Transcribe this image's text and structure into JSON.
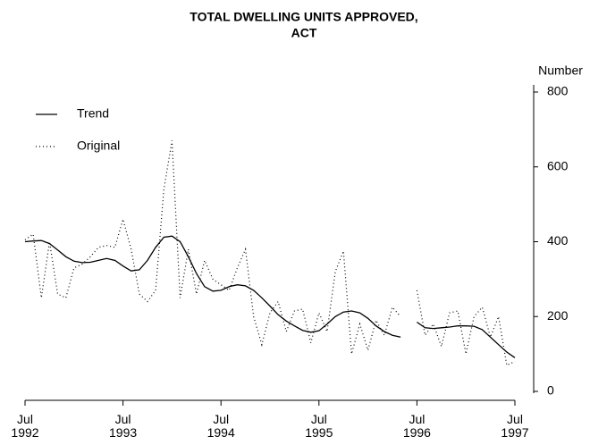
{
  "chart_data": {
    "type": "line",
    "title": "TOTAL DWELLING UNITS APPROVED,",
    "subtitle": "ACT",
    "y_axis_label": "Number",
    "x": [
      "1992-07",
      "1992-08",
      "1992-09",
      "1992-10",
      "1992-11",
      "1992-12",
      "1993-01",
      "1993-02",
      "1993-03",
      "1993-04",
      "1993-05",
      "1993-06",
      "1993-07",
      "1993-08",
      "1993-09",
      "1993-10",
      "1993-11",
      "1993-12",
      "1994-01",
      "1994-02",
      "1994-03",
      "1994-04",
      "1994-05",
      "1994-06",
      "1994-07",
      "1994-08",
      "1994-09",
      "1994-10",
      "1994-11",
      "1994-12",
      "1995-01",
      "1995-02",
      "1995-03",
      "1995-04",
      "1995-05",
      "1995-06",
      "1995-07",
      "1995-08",
      "1995-09",
      "1995-10",
      "1995-11",
      "1995-12",
      "1996-01",
      "1996-02",
      "1996-03",
      "1996-04",
      "1996-05",
      "1996-06",
      "1996-07",
      "1996-08",
      "1996-09",
      "1996-10",
      "1996-11",
      "1996-12",
      "1997-01",
      "1997-02",
      "1997-03",
      "1997-04",
      "1997-05",
      "1997-06",
      "1997-07"
    ],
    "series": [
      {
        "name": "Trend",
        "color": "#000000",
        "style": "solid",
        "values": [
          400,
          402,
          403,
          395,
          378,
          360,
          348,
          344,
          345,
          350,
          355,
          350,
          335,
          322,
          325,
          350,
          385,
          412,
          415,
          400,
          360,
          315,
          280,
          268,
          270,
          280,
          285,
          282,
          270,
          250,
          228,
          205,
          188,
          175,
          163,
          158,
          162,
          180,
          200,
          212,
          215,
          210,
          195,
          175,
          160,
          150,
          145,
          null,
          185,
          170,
          168,
          170,
          172,
          175,
          175,
          174,
          165,
          145,
          125,
          105,
          90
        ]
      },
      {
        "name": "Original",
        "color": "#000000",
        "style": "dotted",
        "values": [
          405,
          420,
          250,
          400,
          260,
          250,
          330,
          340,
          360,
          385,
          390,
          385,
          460,
          380,
          260,
          240,
          270,
          540,
          670,
          250,
          380,
          260,
          350,
          300,
          285,
          270,
          330,
          380,
          200,
          125,
          210,
          240,
          160,
          215,
          220,
          130,
          210,
          160,
          320,
          375,
          100,
          180,
          110,
          190,
          150,
          225,
          200,
          null,
          270,
          150,
          180,
          120,
          210,
          215,
          100,
          200,
          225,
          145,
          200,
          70,
          80
        ]
      }
    ],
    "ylim": [
      0,
      800
    ],
    "yticks": [
      0,
      200,
      400,
      600,
      800
    ],
    "xticks": [
      {
        "value": "1992-07",
        "label": "Jul 1992"
      },
      {
        "value": "1993-07",
        "label": "Jul 1993"
      },
      {
        "value": "1994-07",
        "label": "Jul 1994"
      },
      {
        "value": "1995-07",
        "label": "Jul 1995"
      },
      {
        "value": "1996-07",
        "label": "Jul 1996"
      },
      {
        "value": "1997-07",
        "label": "Jul 1997"
      }
    ],
    "y_axis_side": "right",
    "grid": false
  }
}
